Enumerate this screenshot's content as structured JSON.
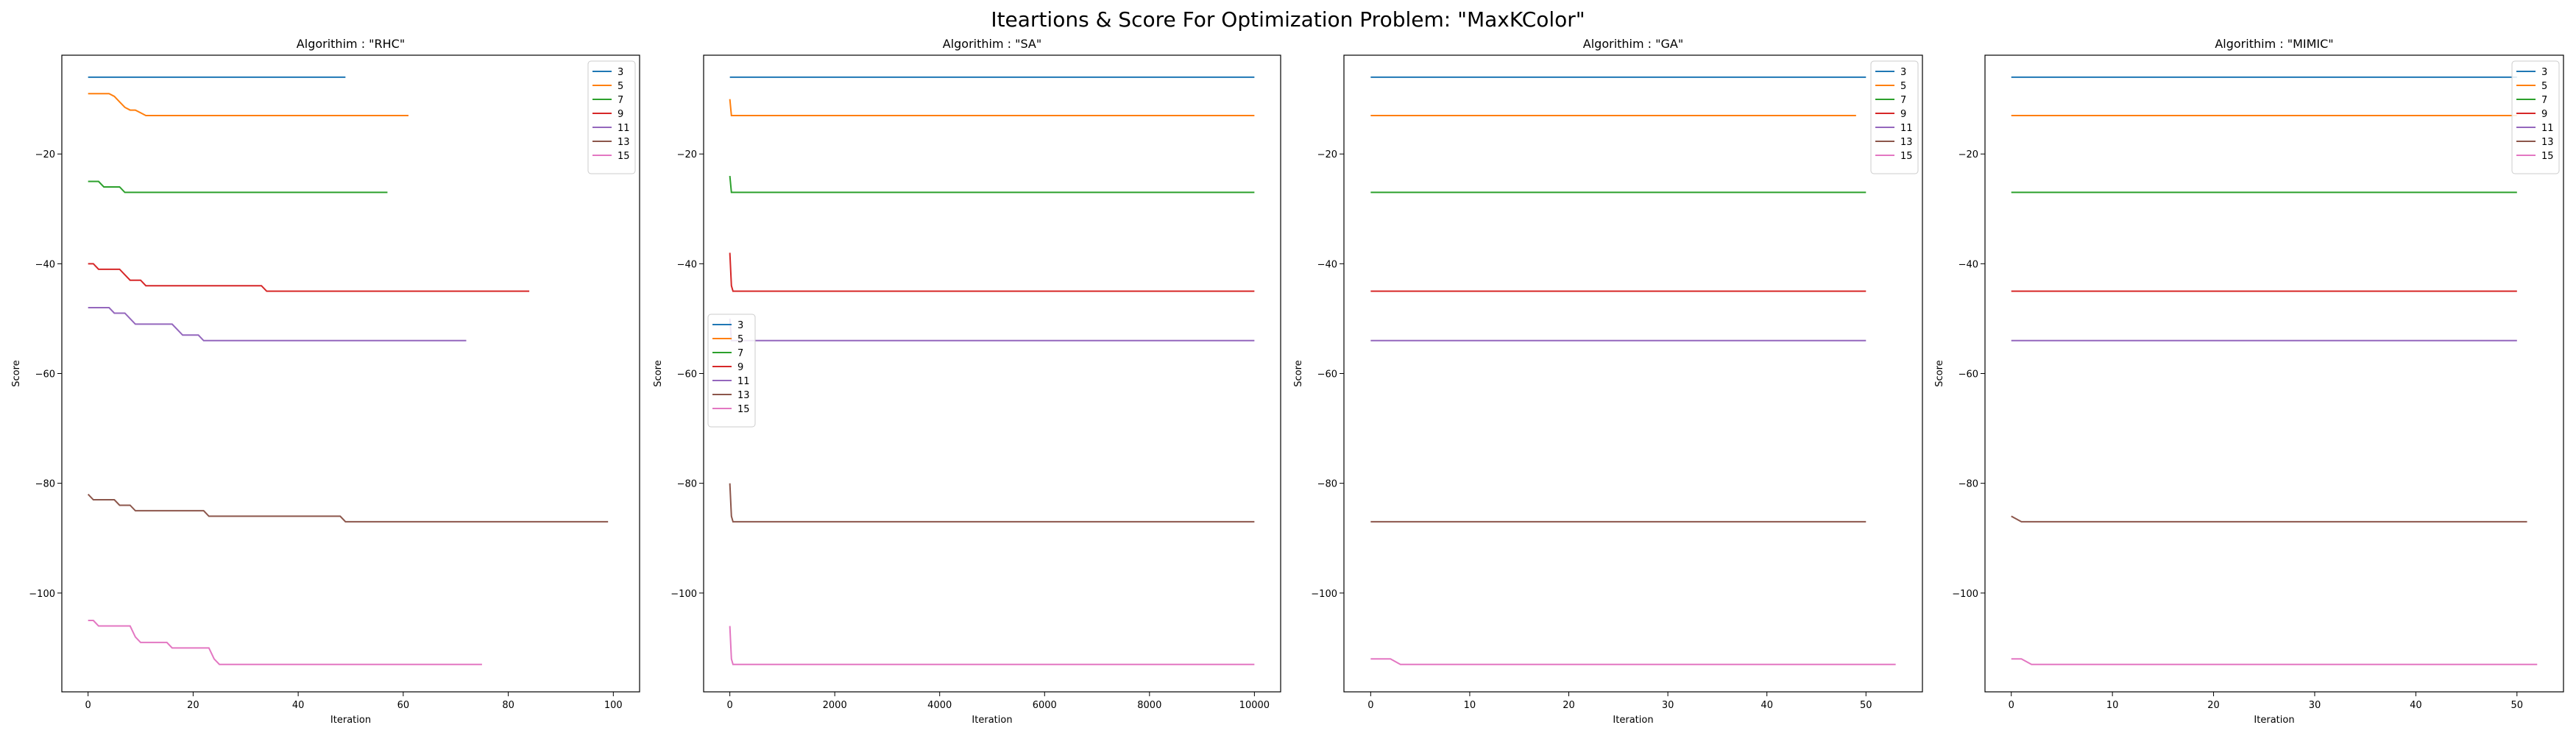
{
  "figure": {
    "title": "Iteartions & Score For Optimization Problem: \"MaxKColor\""
  },
  "colors": {
    "3": "#1f77b4",
    "5": "#ff7f0e",
    "7": "#2ca02c",
    "9": "#d62728",
    "11": "#9467bd",
    "13": "#8c564b",
    "15": "#e377c2"
  },
  "chart_data": [
    {
      "type": "line",
      "title": "Algorithim : \"RHC\"",
      "xlabel": "Iteration",
      "ylabel": "Score",
      "xlim": [
        -5,
        105
      ],
      "ylim": [
        -118,
        -2
      ],
      "xticks": [
        0,
        20,
        40,
        60,
        80,
        100
      ],
      "yticks": [
        -100,
        -80,
        -60,
        -40,
        -20
      ],
      "legend": "top-right",
      "series": [
        {
          "name": "3",
          "points": [
            [
              0,
              -6
            ],
            [
              49,
              -6
            ]
          ]
        },
        {
          "name": "5",
          "points": [
            [
              0,
              -9
            ],
            [
              4,
              -9
            ],
            [
              5,
              -9.5
            ],
            [
              6,
              -10.5
            ],
            [
              7,
              -11.5
            ],
            [
              8,
              -12
            ],
            [
              9,
              -12
            ],
            [
              10,
              -12.5
            ],
            [
              11,
              -13
            ],
            [
              61,
              -13
            ]
          ]
        },
        {
          "name": "7",
          "points": [
            [
              0,
              -25
            ],
            [
              2,
              -25
            ],
            [
              3,
              -26
            ],
            [
              5,
              -26
            ],
            [
              6,
              -26
            ],
            [
              7,
              -27
            ],
            [
              57,
              -27
            ]
          ]
        },
        {
          "name": "9",
          "points": [
            [
              0,
              -40
            ],
            [
              1,
              -40
            ],
            [
              2,
              -41
            ],
            [
              6,
              -41
            ],
            [
              7,
              -42
            ],
            [
              8,
              -43
            ],
            [
              10,
              -43
            ],
            [
              11,
              -44
            ],
            [
              33,
              -44
            ],
            [
              34,
              -45
            ],
            [
              84,
              -45
            ]
          ]
        },
        {
          "name": "11",
          "points": [
            [
              0,
              -48
            ],
            [
              4,
              -48
            ],
            [
              5,
              -49
            ],
            [
              7,
              -49
            ],
            [
              8,
              -50
            ],
            [
              9,
              -51
            ],
            [
              16,
              -51
            ],
            [
              17,
              -52
            ],
            [
              18,
              -53
            ],
            [
              21,
              -53
            ],
            [
              22,
              -54
            ],
            [
              72,
              -54
            ]
          ]
        },
        {
          "name": "13",
          "points": [
            [
              0,
              -82
            ],
            [
              1,
              -83
            ],
            [
              5,
              -83
            ],
            [
              6,
              -84
            ],
            [
              8,
              -84
            ],
            [
              9,
              -85
            ],
            [
              22,
              -85
            ],
            [
              23,
              -86
            ],
            [
              48,
              -86
            ],
            [
              49,
              -87
            ],
            [
              99,
              -87
            ]
          ]
        },
        {
          "name": "15",
          "points": [
            [
              0,
              -105
            ],
            [
              1,
              -105
            ],
            [
              2,
              -106
            ],
            [
              8,
              -106
            ],
            [
              9,
              -108
            ],
            [
              10,
              -109
            ],
            [
              15,
              -109
            ],
            [
              16,
              -110
            ],
            [
              23,
              -110
            ],
            [
              24,
              -112
            ],
            [
              25,
              -113
            ],
            [
              75,
              -113
            ]
          ]
        }
      ]
    },
    {
      "type": "line",
      "title": "Algorithim : \"SA\"",
      "xlabel": "Iteration",
      "ylabel": "Score",
      "xlim": [
        -500,
        10500
      ],
      "ylim": [
        -118,
        -2
      ],
      "xticks": [
        0,
        2000,
        4000,
        6000,
        8000,
        10000
      ],
      "yticks": [
        -100,
        -80,
        -60,
        -40,
        -20
      ],
      "legend": "center-left",
      "series": [
        {
          "name": "3",
          "points": [
            [
              0,
              -6
            ],
            [
              10000,
              -6
            ]
          ]
        },
        {
          "name": "5",
          "points": [
            [
              0,
              -10
            ],
            [
              30,
              -13
            ],
            [
              10000,
              -13
            ]
          ]
        },
        {
          "name": "7",
          "points": [
            [
              0,
              -24
            ],
            [
              30,
              -27
            ],
            [
              10000,
              -27
            ]
          ]
        },
        {
          "name": "9",
          "points": [
            [
              0,
              -38
            ],
            [
              30,
              -44
            ],
            [
              60,
              -45
            ],
            [
              10000,
              -45
            ]
          ]
        },
        {
          "name": "11",
          "points": [
            [
              0,
              -50
            ],
            [
              30,
              -54
            ],
            [
              10000,
              -54
            ]
          ]
        },
        {
          "name": "13",
          "points": [
            [
              0,
              -80
            ],
            [
              30,
              -86
            ],
            [
              60,
              -87
            ],
            [
              10000,
              -87
            ]
          ]
        },
        {
          "name": "15",
          "points": [
            [
              0,
              -106
            ],
            [
              30,
              -112
            ],
            [
              60,
              -113
            ],
            [
              10000,
              -113
            ]
          ]
        }
      ]
    },
    {
      "type": "line",
      "title": "Algorithim : \"GA\"",
      "xlabel": "Iteration",
      "ylabel": "Score",
      "xlim": [
        -2.7,
        55.7
      ],
      "ylim": [
        -118,
        -2
      ],
      "xticks": [
        0,
        10,
        20,
        30,
        40,
        50
      ],
      "yticks": [
        -100,
        -80,
        -60,
        -40,
        -20
      ],
      "legend": "top-right",
      "series": [
        {
          "name": "3",
          "points": [
            [
              0,
              -6
            ],
            [
              50,
              -6
            ]
          ]
        },
        {
          "name": "5",
          "points": [
            [
              0,
              -13
            ],
            [
              49,
              -13
            ]
          ]
        },
        {
          "name": "7",
          "points": [
            [
              0,
              -27
            ],
            [
              50,
              -27
            ]
          ]
        },
        {
          "name": "9",
          "points": [
            [
              0,
              -45
            ],
            [
              50,
              -45
            ]
          ]
        },
        {
          "name": "11",
          "points": [
            [
              0,
              -54
            ],
            [
              50,
              -54
            ]
          ]
        },
        {
          "name": "13",
          "points": [
            [
              0,
              -87
            ],
            [
              50,
              -87
            ]
          ]
        },
        {
          "name": "15",
          "points": [
            [
              0,
              -112
            ],
            [
              2,
              -112
            ],
            [
              3,
              -113
            ],
            [
              53,
              -113
            ]
          ]
        }
      ]
    },
    {
      "type": "line",
      "title": "Algorithim : \"MIMIC\"",
      "xlabel": "Iteration",
      "ylabel": "Score",
      "xlim": [
        -2.6,
        54.6
      ],
      "ylim": [
        -118,
        -2
      ],
      "xticks": [
        0,
        10,
        20,
        30,
        40,
        50
      ],
      "yticks": [
        -100,
        -80,
        -60,
        -40,
        -20
      ],
      "legend": "top-right",
      "series": [
        {
          "name": "3",
          "points": [
            [
              0,
              -6
            ],
            [
              50,
              -6
            ]
          ]
        },
        {
          "name": "5",
          "points": [
            [
              0,
              -13
            ],
            [
              50,
              -13
            ]
          ]
        },
        {
          "name": "7",
          "points": [
            [
              0,
              -27
            ],
            [
              50,
              -27
            ]
          ]
        },
        {
          "name": "9",
          "points": [
            [
              0,
              -45
            ],
            [
              50,
              -45
            ]
          ]
        },
        {
          "name": "11",
          "points": [
            [
              0,
              -54
            ],
            [
              50,
              -54
            ]
          ]
        },
        {
          "name": "13",
          "points": [
            [
              0,
              -86
            ],
            [
              1,
              -87
            ],
            [
              51,
              -87
            ]
          ]
        },
        {
          "name": "15",
          "points": [
            [
              0,
              -112
            ],
            [
              1,
              -112
            ],
            [
              2,
              -113
            ],
            [
              52,
              -113
            ]
          ]
        }
      ]
    }
  ]
}
